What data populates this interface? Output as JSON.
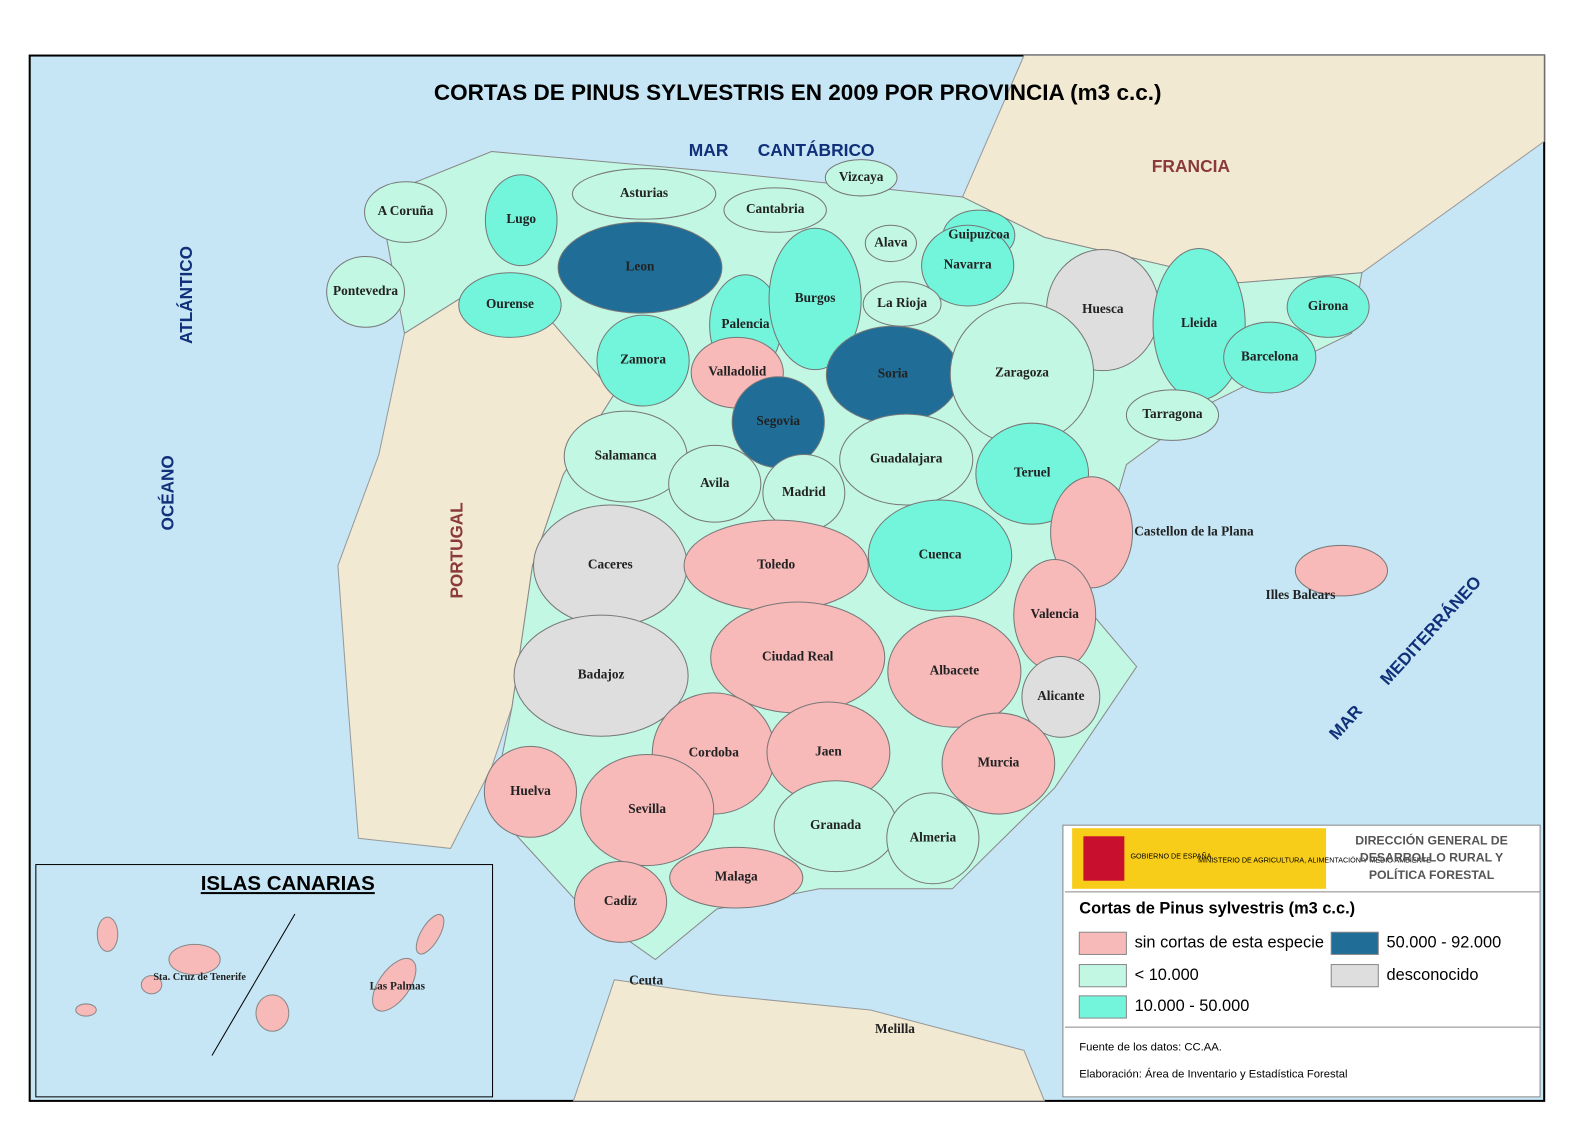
{
  "title": "CORTAS DE PINUS SYLVESTRIS EN 2009 POR PROVINCIA (m3 c.c.)",
  "sea_labels": [
    "MAR",
    "CANTÁBRICO",
    "ATLÁNTICO",
    "OCÉANO",
    "MAR",
    "MEDITERRÁNEO"
  ],
  "country_labels": [
    "FRANCIA",
    "PORTUGAL"
  ],
  "provinces": [
    {
      "name": "A Coruña",
      "class": 1
    },
    {
      "name": "Lugo",
      "class": 2
    },
    {
      "name": "Asturias",
      "class": 1
    },
    {
      "name": "Cantabria",
      "class": 1
    },
    {
      "name": "Vizcaya",
      "class": 1
    },
    {
      "name": "Guipuzcoa",
      "class": 2
    },
    {
      "name": "Alava",
      "class": 1
    },
    {
      "name": "Navarra",
      "class": 2
    },
    {
      "name": "Leon",
      "class": 3
    },
    {
      "name": "Pontevedra",
      "class": 1
    },
    {
      "name": "Ourense",
      "class": 2
    },
    {
      "name": "Palencia",
      "class": 2
    },
    {
      "name": "Burgos",
      "class": 2
    },
    {
      "name": "La Rioja",
      "class": 1
    },
    {
      "name": "Huesca",
      "class": 4
    },
    {
      "name": "Lleida",
      "class": 2
    },
    {
      "name": "Girona",
      "class": 2
    },
    {
      "name": "Barcelona",
      "class": 2
    },
    {
      "name": "Zamora",
      "class": 2
    },
    {
      "name": "Valladolid",
      "class": 0
    },
    {
      "name": "Soria",
      "class": 3
    },
    {
      "name": "Zaragoza",
      "class": 1
    },
    {
      "name": "Tarragona",
      "class": 1
    },
    {
      "name": "Segovia",
      "class": 3
    },
    {
      "name": "Salamanca",
      "class": 1
    },
    {
      "name": "Avila",
      "class": 1
    },
    {
      "name": "Madrid",
      "class": 1
    },
    {
      "name": "Guadalajara",
      "class": 1
    },
    {
      "name": "Teruel",
      "class": 2
    },
    {
      "name": "Castellon de la Plana",
      "class": 0
    },
    {
      "name": "Caceres",
      "class": 4
    },
    {
      "name": "Toledo",
      "class": 0
    },
    {
      "name": "Cuenca",
      "class": 2
    },
    {
      "name": "Valencia",
      "class": 0
    },
    {
      "name": "Illes Balears",
      "class": 0
    },
    {
      "name": "Badajoz",
      "class": 4
    },
    {
      "name": "Ciudad Real",
      "class": 0
    },
    {
      "name": "Albacete",
      "class": 0
    },
    {
      "name": "Alicante",
      "class": 4
    },
    {
      "name": "Cordoba",
      "class": 0
    },
    {
      "name": "Jaen",
      "class": 0
    },
    {
      "name": "Murcia",
      "class": 0
    },
    {
      "name": "Huelva",
      "class": 0
    },
    {
      "name": "Sevilla",
      "class": 0
    },
    {
      "name": "Granada",
      "class": 1
    },
    {
      "name": "Almeria",
      "class": 1
    },
    {
      "name": "Malaga",
      "class": 0
    },
    {
      "name": "Cadiz",
      "class": 0
    }
  ],
  "cities": [
    "Ceuta",
    "Melilla"
  ],
  "inset": {
    "title": "ISLAS CANARIAS",
    "labels": [
      "Sta. Cruz de Tenerife",
      "Las Palmas"
    ]
  },
  "header": {
    "government": "GOBIERNO DE ESPAÑA",
    "ministry": "MINISTERIO DE AGRICULTURA, ALIMENTACIÓN Y MEDIO AMBIENTE",
    "directorate": [
      "DIRECCIÓN GENERAL DE",
      "DESARROLLO RURAL Y",
      "POLÍTICA FORESTAL"
    ]
  },
  "legend": {
    "title": "Cortas de Pinus sylvestris (m3 c.c.)",
    "items": [
      {
        "label": "sin cortas de esta especie",
        "color": "#f8b9b9"
      },
      {
        "label": "< 10.000",
        "color": "#c2f7e3"
      },
      {
        "label": "10.000 - 50.000",
        "color": "#72f5db"
      },
      {
        "label": "50.000 - 92.000",
        "color": "#206e97"
      },
      {
        "label": "desconocido",
        "color": "#dedede"
      }
    ]
  },
  "source": [
    "Fuente de los datos: CC.AA.",
    "Elaboración: Área de Inventario y Estadística Forestal"
  ]
}
